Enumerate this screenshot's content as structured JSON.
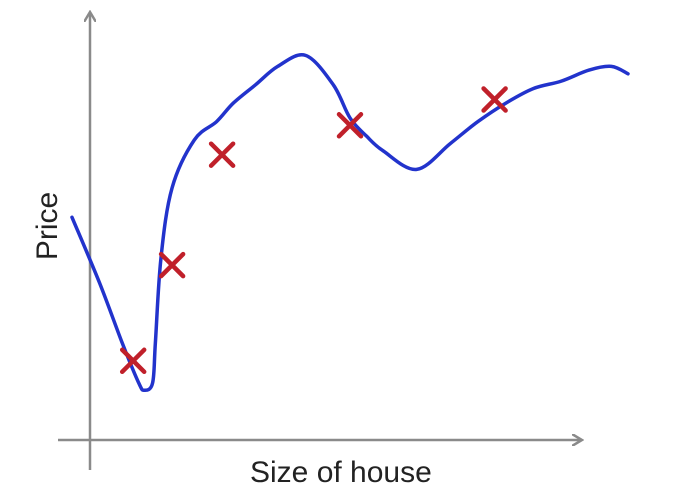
{
  "chart_data": {
    "type": "line",
    "xlabel": "Size of house",
    "ylabel": "Price",
    "grid": false,
    "xlim": [
      0,
      10
    ],
    "ylim": [
      0,
      10
    ],
    "colors": {
      "axis": "#8a8a8a",
      "curve": "#2233cc",
      "marker": "#c0202a"
    },
    "series": [
      {
        "type": "line",
        "x": [
          0,
          0.5,
          0.9,
          1.2,
          1.3,
          1.45,
          1.5,
          1.6,
          1.8,
          2.2,
          2.6,
          2.9,
          3.3,
          3.7,
          4.2,
          4.7,
          5.0,
          5.3,
          5.6,
          6.2,
          6.8,
          7.3,
          7.8,
          8.3,
          8.8,
          9.3,
          9.7,
          10.0
        ],
        "y": [
          5.4,
          3.6,
          2.0,
          0.9,
          0.7,
          0.9,
          2.0,
          4.3,
          6.2,
          7.5,
          8.0,
          8.5,
          9.0,
          9.5,
          9.8,
          9.0,
          8.1,
          7.6,
          7.2,
          6.7,
          7.4,
          8.0,
          8.5,
          8.9,
          9.1,
          9.4,
          9.5,
          9.3
        ]
      },
      {
        "type": "scatter",
        "x": [
          1.1,
          1.8,
          2.7,
          5.0,
          7.6
        ],
        "y": [
          1.5,
          4.1,
          7.1,
          7.9,
          8.6
        ]
      }
    ]
  }
}
